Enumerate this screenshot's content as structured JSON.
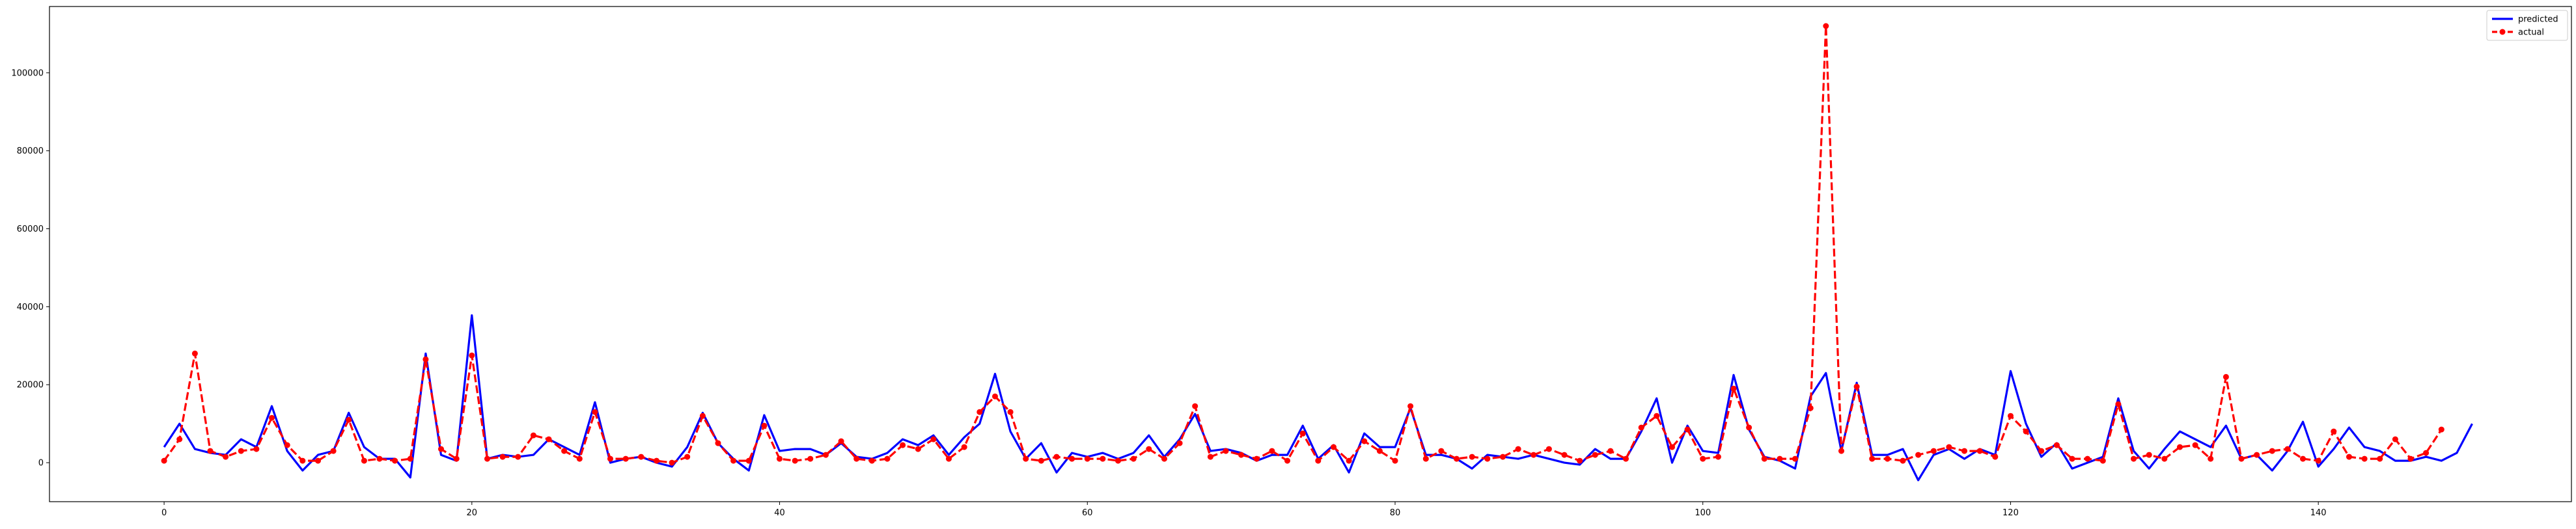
{
  "chart_data": {
    "type": "line",
    "title": "",
    "xlabel": "",
    "ylabel": "",
    "xlim": [
      -7.45,
      156.45
    ],
    "ylim": [
      -10000,
      117000
    ],
    "x_ticks": [
      0,
      20,
      40,
      60,
      80,
      100,
      120,
      140
    ],
    "y_ticks": [
      0,
      20000,
      40000,
      60000,
      80000,
      100000
    ],
    "y_tick_labels": [
      "0",
      "20000",
      "40000",
      "60000",
      "80000",
      "100000"
    ],
    "grid": false,
    "legend_position": "top-right",
    "series": [
      {
        "name": "predicted",
        "color": "#0000ff",
        "style": "solid",
        "marker": "none",
        "values": [
          4000,
          10000,
          3500,
          2500,
          2000,
          6000,
          4000,
          14500,
          3000,
          -2000,
          2000,
          3000,
          12800,
          4000,
          1000,
          1000,
          -3800,
          28000,
          2000,
          500,
          37800,
          1000,
          2000,
          1500,
          2000,
          6000,
          4000,
          2000,
          15500,
          0,
          1000,
          1500,
          0,
          -1000,
          4000,
          12800,
          5000,
          1000,
          -2000,
          12200,
          3000,
          3500,
          3500,
          2000,
          5000,
          1500,
          1000,
          2500,
          6000,
          4500,
          7000,
          2000,
          6500,
          10000,
          22800,
          8000,
          1000,
          5000,
          -2500,
          2500,
          1500,
          2500,
          1000,
          2500,
          7000,
          1500,
          6000,
          12500,
          3000,
          3500,
          2500,
          500,
          2000,
          2000,
          9500,
          1000,
          4500,
          -2500,
          7500,
          4000,
          4000,
          14000,
          2000,
          2000,
          1000,
          -1500,
          2000,
          1500,
          1000,
          2000,
          1000,
          0,
          -500,
          3500,
          1000,
          1000,
          8000,
          16500,
          0,
          9500,
          3000,
          2500,
          22500,
          8500,
          1500,
          500,
          -1500,
          17000,
          23000,
          3000,
          20500,
          2000,
          2000,
          3500,
          -4500,
          2000,
          3500,
          1000,
          3500,
          2000,
          23500,
          10000,
          1500,
          5000,
          -1500,
          0,
          1500,
          16500,
          3000,
          -1500,
          3500,
          8000,
          6000,
          4000,
          9500,
          1000,
          2000,
          -2000,
          3000,
          10500,
          -1000,
          3500,
          9000,
          4000,
          3000,
          500,
          500,
          1500,
          500,
          2500,
          10000
        ]
      },
      {
        "name": "actual",
        "color": "#ff0000",
        "style": "dashed",
        "marker": "circle",
        "values": [
          500,
          6000,
          28000,
          3000,
          1500,
          3000,
          3500,
          11500,
          4500,
          500,
          500,
          3000,
          11000,
          500,
          1000,
          500,
          1000,
          26500,
          3500,
          1000,
          27500,
          1000,
          1500,
          1500,
          7000,
          6000,
          3000,
          1000,
          13000,
          1000,
          1000,
          1500,
          500,
          0,
          1500,
          12000,
          5000,
          500,
          500,
          9500,
          1000,
          500,
          1000,
          2000,
          5500,
          1000,
          500,
          1000,
          4500,
          3500,
          6000,
          1000,
          4000,
          13000,
          17000,
          13000,
          1000,
          500,
          1500,
          1000,
          1000,
          1000,
          500,
          1000,
          3500,
          1000,
          5000,
          14500,
          1500,
          3000,
          2000,
          1000,
          3000,
          500,
          7500,
          500,
          4000,
          500,
          5500,
          3000,
          500,
          14500,
          1000,
          3000,
          1000,
          1500,
          1000,
          1500,
          3500,
          2000,
          3500,
          2000,
          500,
          2000,
          3000,
          1000,
          9000,
          12000,
          4000,
          8500,
          1000,
          1500,
          19000,
          9000,
          1000,
          1000,
          1000,
          14000,
          112000,
          3000,
          19500,
          1000,
          1000,
          500,
          2000,
          3000,
          4000,
          3000,
          3000,
          1500,
          12000,
          8000,
          3000,
          4500,
          1000,
          1000,
          500,
          15000,
          1000,
          2000,
          1000,
          4000,
          4500,
          1000,
          22000,
          1000,
          2000,
          3000,
          3500,
          1000,
          500,
          8000,
          1500,
          1000,
          1000,
          6000,
          1000,
          2500,
          8500
        ]
      }
    ]
  }
}
